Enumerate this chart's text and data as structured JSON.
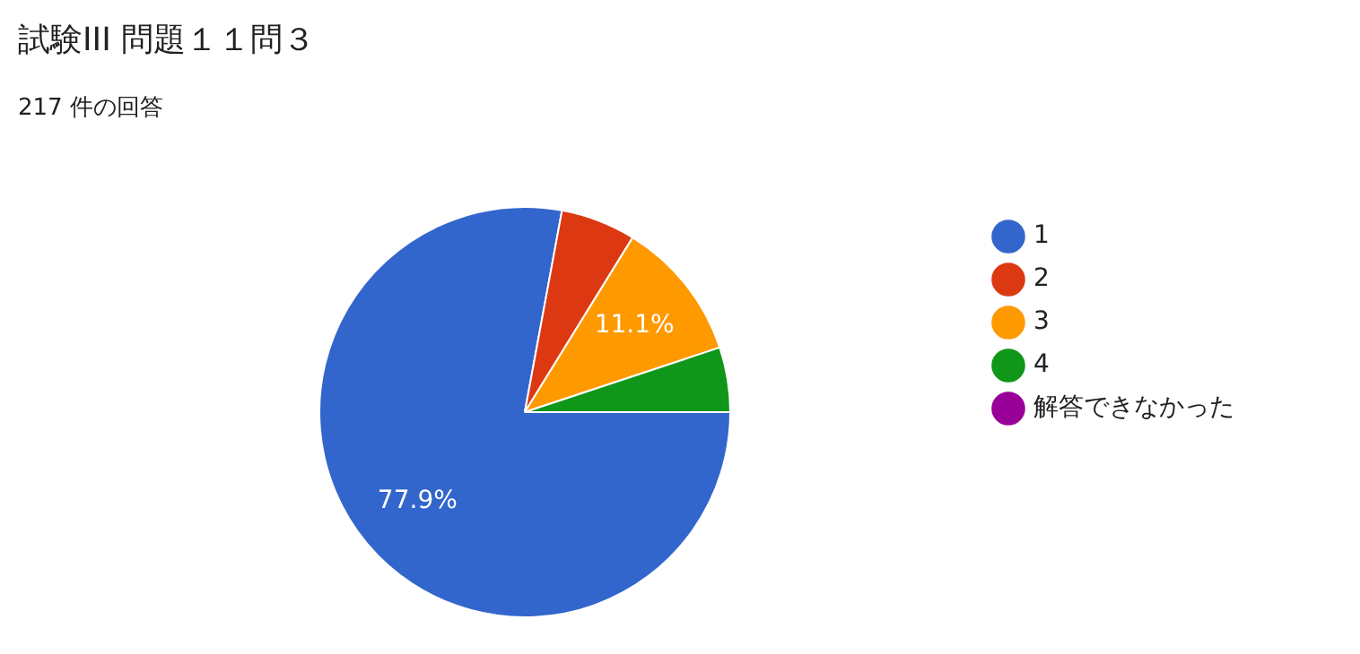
{
  "chart_data": {
    "type": "pie",
    "title": "試験III 問題１１問３",
    "subtitle": "217 件の回答",
    "categories": [
      "1",
      "2",
      "3",
      "4",
      "解答できなかった"
    ],
    "values": [
      77.9,
      5.9,
      11.1,
      5.1,
      0
    ],
    "colors": [
      "#3366cc",
      "#dc3912",
      "#ff9900",
      "#109618",
      "#990099"
    ],
    "value_labels": [
      "77.9%",
      null,
      "11.1%",
      null,
      null
    ],
    "legend": "right"
  }
}
